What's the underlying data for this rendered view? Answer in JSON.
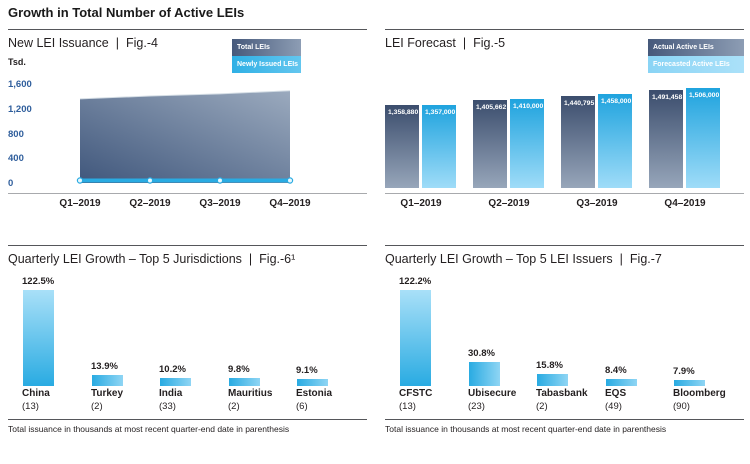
{
  "page": {
    "title": "Growth in Total Number of Active LEIs"
  },
  "colors": {
    "slate_dark": "#40577C",
    "slate_light": "#9BAABE",
    "cyan": "#29ABE2",
    "cyan_light": "#8ED7F6",
    "axis_blue": "#2F5E9C",
    "text_dark": "#231F20"
  },
  "chart_data": [
    {
      "id": "fig4",
      "type": "area",
      "title": "New LEI Issuance",
      "sep": "|",
      "fig_label": "Fig.-4",
      "unit": "Tsd.",
      "x": [
        "Q1–2019",
        "Q2–2019",
        "Q3–2019",
        "Q4–2019"
      ],
      "series": [
        {
          "name": "Total LEIs",
          "legend_style": "slate",
          "values": [
            1358.88,
            1405.662,
            1440.795,
            1491.458
          ]
        },
        {
          "name": "Newly Issued LEIs",
          "legend_style": "cyan",
          "values": [
            40,
            40,
            40,
            40
          ],
          "estimated": true
        }
      ],
      "ylim": [
        0,
        1600
      ],
      "ytick_labels": [
        "1,600",
        "1,200",
        "800",
        "400",
        "0"
      ],
      "grid": false,
      "legend_position": "top-right"
    },
    {
      "id": "fig5",
      "type": "bar",
      "title": "LEI Forecast",
      "sep": "|",
      "fig_label": "Fig.-5",
      "categories": [
        "Q1–2019",
        "Q2–2019",
        "Q3–2019",
        "Q4–2019"
      ],
      "series": [
        {
          "name": "Actual Active LEIs",
          "legend_style": "slate",
          "values": [
            1358880,
            1405662,
            1440795,
            1491458
          ]
        },
        {
          "name": "Forecasted Active LEIs",
          "legend_style": "cyan-light",
          "values": [
            1357000,
            1410000,
            1458000,
            1506000
          ]
        }
      ],
      "value_labels": true,
      "axis_truncated": true,
      "legend_position": "top-right"
    },
    {
      "id": "fig6",
      "type": "bar",
      "title": "Quarterly LEI Growth – Top 5 Jurisdictions",
      "sep": "|",
      "fig_label": "Fig.-6¹",
      "categories": [
        "China",
        "Turkey",
        "India",
        "Mauritius",
        "Estonia"
      ],
      "values": [
        122.5,
        13.9,
        10.2,
        9.8,
        9.1
      ],
      "value_suffix": "%",
      "issuance_thousands": [
        13,
        2,
        33,
        2,
        6
      ],
      "note": "Total issuance in thousands at most recent quarter-end date in parenthesis"
    },
    {
      "id": "fig7",
      "type": "bar",
      "title": "Quarterly LEI Growth – Top 5 LEI Issuers",
      "sep": "|",
      "fig_label": "Fig.-7",
      "categories": [
        "CFSTC",
        "Ubisecure",
        "Tabasbank",
        "EQS",
        "Bloomberg"
      ],
      "values": [
        122.2,
        30.8,
        15.8,
        8.4,
        7.9
      ],
      "value_suffix": "%",
      "issuance_thousands": [
        13,
        23,
        2,
        49,
        90
      ],
      "note": "Total issuance in thousands at most recent quarter-end date in parenthesis"
    }
  ]
}
